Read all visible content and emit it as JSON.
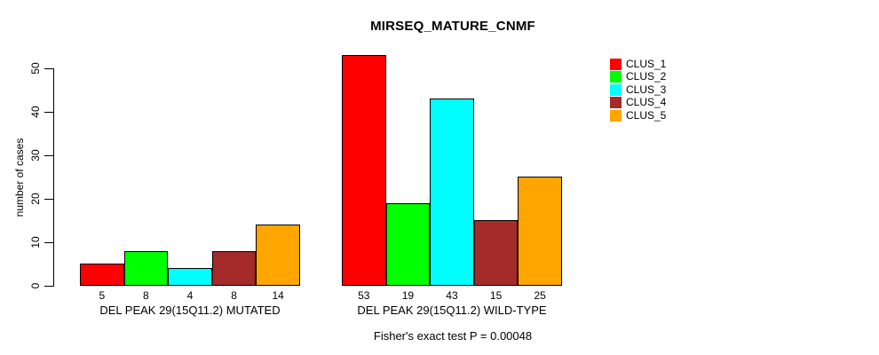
{
  "title": "MIRSEQ_MATURE_CNMF",
  "annotation": "Fisher's exact test P = 0.00048",
  "chart_data": {
    "type": "bar",
    "title": "MIRSEQ_MATURE_CNMF",
    "xlabel": "",
    "ylabel": "number of cases",
    "ylim": [
      0,
      50
    ],
    "yticks": [
      0,
      10,
      20,
      30,
      40,
      50
    ],
    "grid": false,
    "legend_position": "top-right-outside",
    "categories": [
      "DEL PEAK 29(15Q11.2) MUTATED",
      "DEL PEAK 29(15Q11.2) WILD-TYPE"
    ],
    "series": [
      {
        "name": "CLUS_1",
        "color": "#FF0000",
        "values": [
          5,
          53
        ]
      },
      {
        "name": "CLUS_2",
        "color": "#00FF00",
        "values": [
          8,
          19
        ]
      },
      {
        "name": "CLUS_3",
        "color": "#00FFFF",
        "values": [
          4,
          43
        ]
      },
      {
        "name": "CLUS_4",
        "color": "#A52A2A",
        "values": [
          8,
          15
        ]
      },
      {
        "name": "CLUS_5",
        "color": "#FFA500",
        "values": [
          14,
          25
        ]
      }
    ],
    "bar_value_labels": [
      [
        5,
        8,
        4,
        8,
        14
      ],
      [
        53,
        19,
        43,
        15,
        25
      ]
    ],
    "annotation": "Fisher's exact test P = 0.00048",
    "axis_color": "#000000",
    "bar_border_color": "#000000"
  }
}
